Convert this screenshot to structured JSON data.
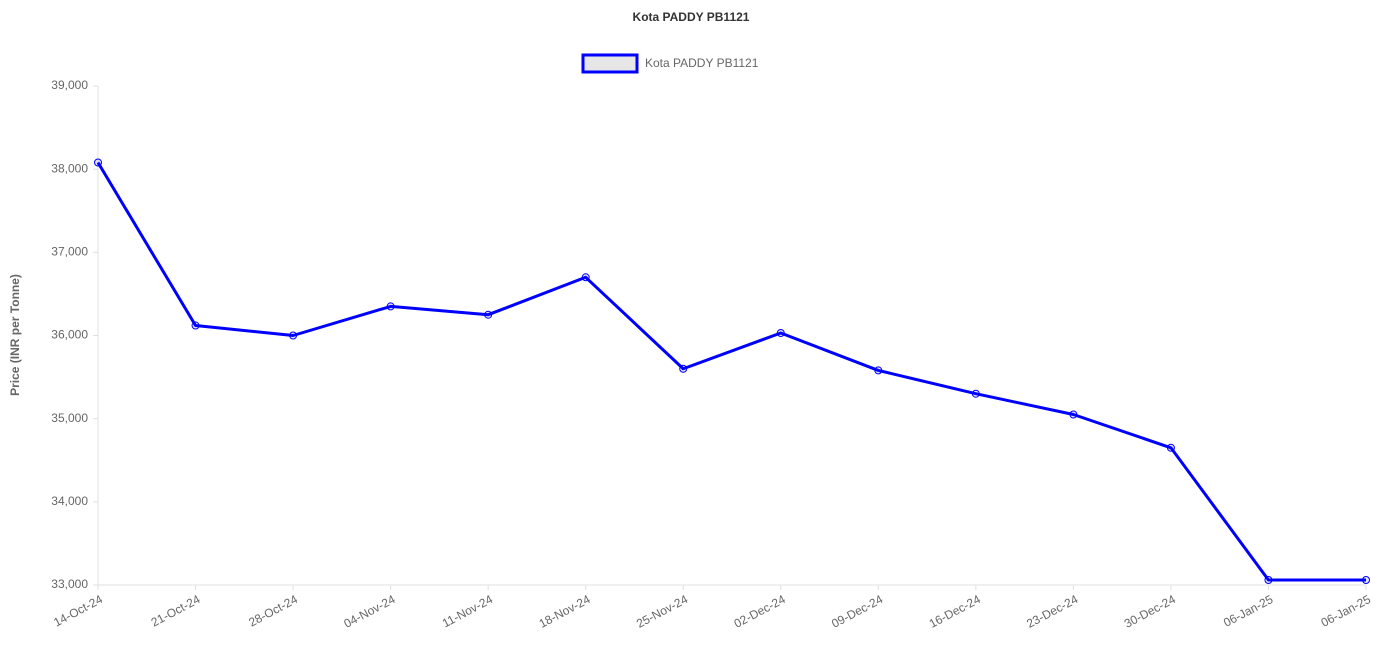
{
  "chart_data": {
    "type": "line",
    "title": "Kota PADDY PB1121",
    "y_label": "Price (INR per Tonne)",
    "categories": [
      "14-Oct-24",
      "21-Oct-24",
      "28-Oct-24",
      "04-Nov-24",
      "11-Nov-24",
      "18-Nov-24",
      "25-Nov-24",
      "02-Dec-24",
      "09-Dec-24",
      "16-Dec-24",
      "23-Dec-24",
      "30-Dec-24",
      "06-Jan-25",
      "06-Jan-25"
    ],
    "series": [
      {
        "name": "Kota PADDY PB1121",
        "color": "#0000ff",
        "values": [
          38080,
          36120,
          36000,
          36350,
          36250,
          36700,
          35600,
          36030,
          35580,
          35300,
          35050,
          34650,
          33060,
          33060
        ]
      }
    ],
    "ylim": [
      33000,
      39000
    ],
    "yticks": [
      {
        "value": 33000,
        "label": "33,000"
      },
      {
        "value": 34000,
        "label": "34,000"
      },
      {
        "value": 35000,
        "label": "35,000"
      },
      {
        "value": 36000,
        "label": "36,000"
      },
      {
        "value": 37000,
        "label": "37,000"
      },
      {
        "value": 38000,
        "label": "38,000"
      },
      {
        "value": 39000,
        "label": "39,000"
      }
    ],
    "grid": false,
    "legend": "top"
  }
}
